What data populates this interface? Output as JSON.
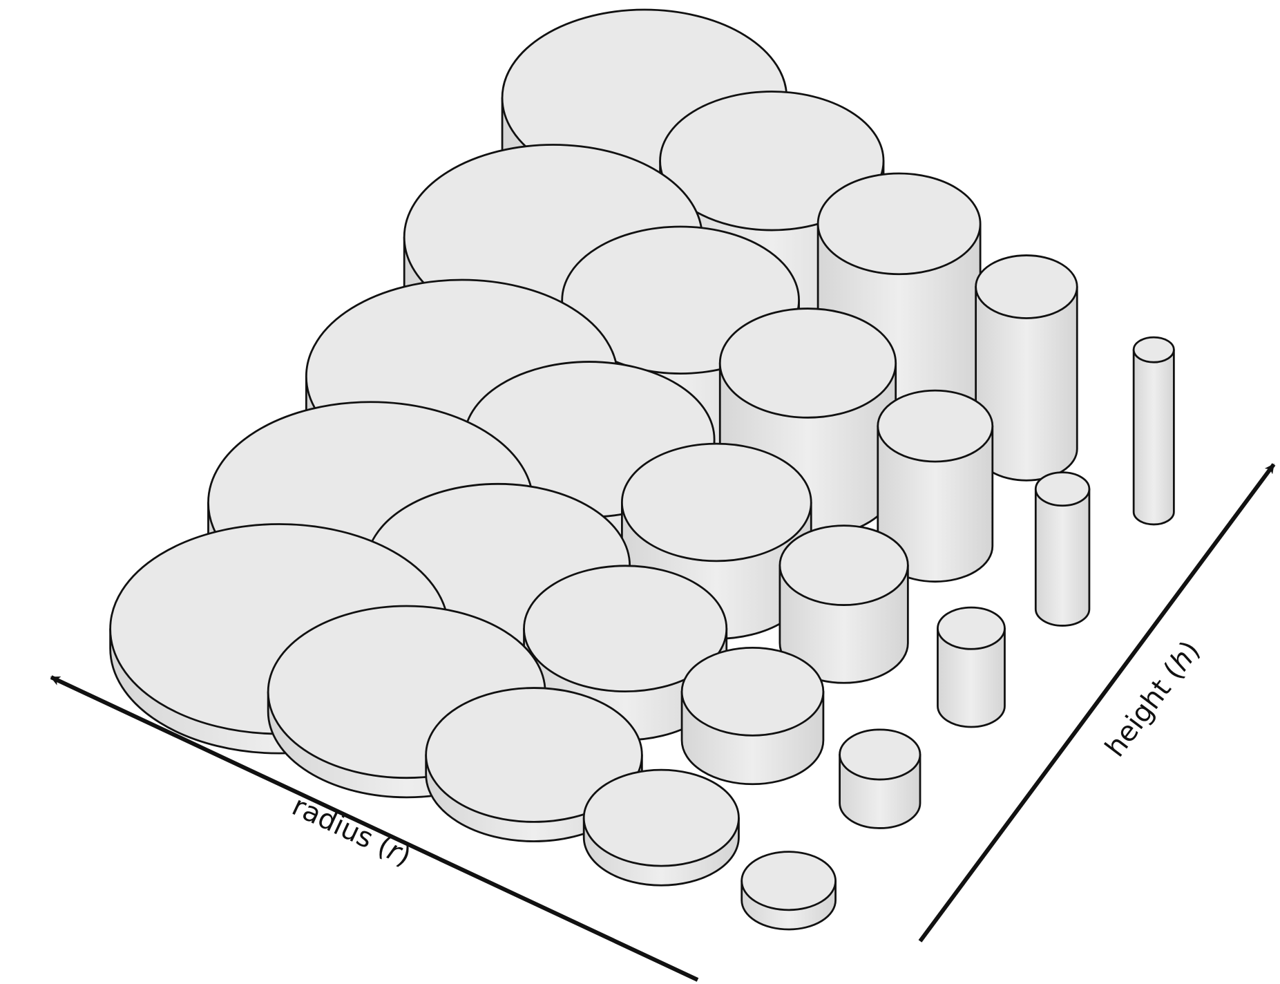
{
  "diagram": {
    "colors": {
      "fill": "#e9e9e9",
      "side_shadow": "#d2d2d2",
      "stroke": "#111111",
      "background": "#ffffff"
    },
    "radius_axis": {
      "word": "radius",
      "symbol": "r"
    },
    "height_axis": {
      "word": "height",
      "symbol": "h"
    },
    "grid": {
      "rows": 5,
      "columns": 5
    }
  }
}
